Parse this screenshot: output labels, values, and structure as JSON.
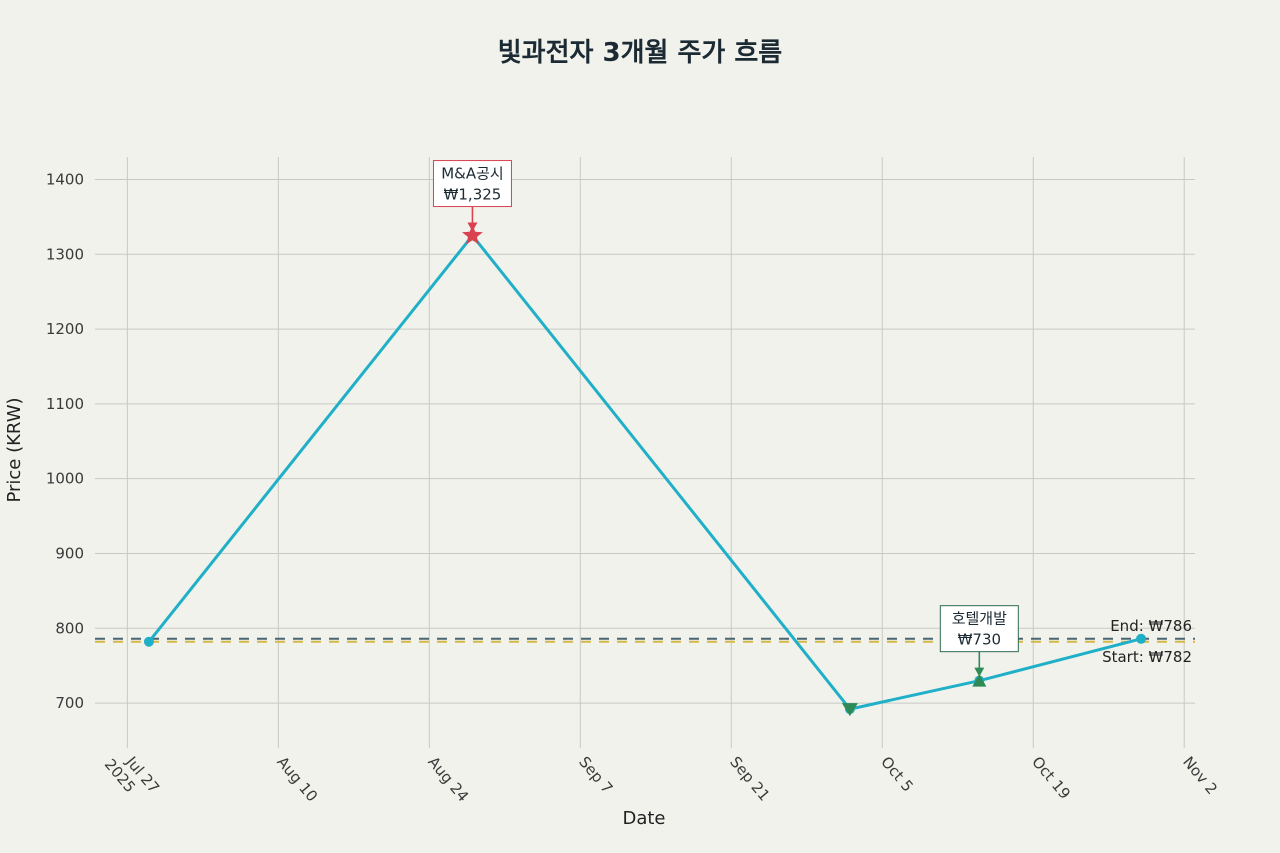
{
  "chart_data": {
    "type": "line",
    "title": "빛과전자 3개월 주가 흐름",
    "xlabel": "Date",
    "ylabel": "Price (KRW)",
    "x_range": [
      "2025-07-24",
      "2025-11-03"
    ],
    "ylim": [
      640,
      1430
    ],
    "y_ticks": [
      700,
      800,
      900,
      1000,
      1100,
      1200,
      1300,
      1400
    ],
    "x_ticks": [
      {
        "date": "2025-07-27",
        "label": "Jul 27",
        "sub": "2025"
      },
      {
        "date": "2025-08-10",
        "label": "Aug 10",
        "sub": ""
      },
      {
        "date": "2025-08-24",
        "label": "Aug 24",
        "sub": ""
      },
      {
        "date": "2025-09-07",
        "label": "Sep 7",
        "sub": ""
      },
      {
        "date": "2025-09-21",
        "label": "Sep 21",
        "sub": ""
      },
      {
        "date": "2025-10-05",
        "label": "Oct 5",
        "sub": ""
      },
      {
        "date": "2025-10-19",
        "label": "Oct 19",
        "sub": ""
      },
      {
        "date": "2025-11-02",
        "label": "Nov 2",
        "sub": ""
      }
    ],
    "grid": true,
    "series": [
      {
        "color": "#1fb0c8",
        "points": [
          {
            "x": "2025-07-29",
            "y": 782
          },
          {
            "x": "2025-08-28",
            "y": 1325
          },
          {
            "x": "2025-10-02",
            "y": 692
          },
          {
            "x": "2025-10-14",
            "y": 730
          },
          {
            "x": "2025-10-29",
            "y": 786
          }
        ]
      }
    ],
    "markers": [
      {
        "x": "2025-08-28",
        "y": 1325,
        "shape": "star",
        "color": "#d9414e"
      },
      {
        "x": "2025-10-02",
        "y": 692,
        "shape": "triangle-down",
        "color": "#2e8b57"
      },
      {
        "x": "2025-10-14",
        "y": 730,
        "shape": "triangle-up",
        "color": "#2e8b57"
      }
    ],
    "annotations": [
      {
        "x": "2025-08-28",
        "y": 1325,
        "lines": [
          "M&A공시",
          "₩1,325"
        ],
        "border": "#d9414e",
        "arrow": "#d9414e"
      },
      {
        "x": "2025-10-14",
        "y": 730,
        "lines": [
          "호텔개발",
          "₩730"
        ],
        "border": "#2e6b4f",
        "arrow": "#2e8b57"
      }
    ],
    "reference_lines": [
      {
        "y": 786,
        "label": "End: ₩786",
        "color": "#4a6470",
        "label_side": "above"
      },
      {
        "y": 782,
        "label": "Start: ₩782",
        "color": "#d4b84a",
        "label_side": "below"
      }
    ]
  }
}
